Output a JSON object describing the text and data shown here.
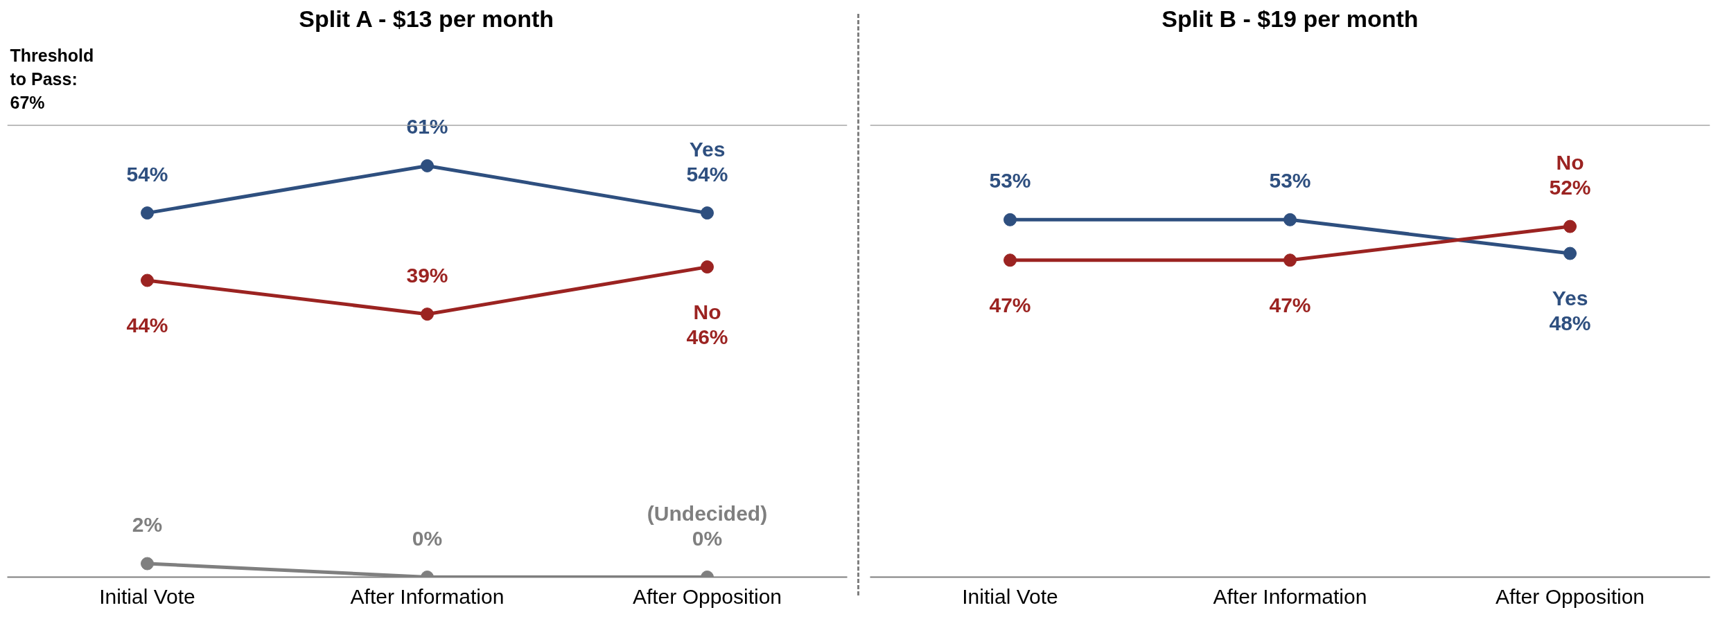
{
  "chart_data": [
    {
      "type": "line",
      "title": "Split A - $13 per month",
      "categories": [
        "Initial Vote",
        "After Information",
        "After Opposition"
      ],
      "data_labels": true,
      "marker": "circle",
      "line_style": "solid",
      "grid": false,
      "legend": false,
      "series": [
        {
          "name": "Yes",
          "color": "#2e4f7f",
          "values": [
            54,
            61,
            54
          ],
          "value_labels": [
            "54%",
            "61%",
            "54%"
          ]
        },
        {
          "name": "No",
          "color": "#9b2321",
          "values": [
            44,
            39,
            46
          ],
          "value_labels": [
            "44%",
            "39%",
            "46%"
          ]
        },
        {
          "name": "(Undecided)",
          "color": "#7f7f7f",
          "values": [
            2,
            0,
            0
          ],
          "value_labels": [
            "2%",
            "0%",
            "0%"
          ]
        }
      ],
      "ref_lines": [
        {
          "axis": "y",
          "value": 67,
          "label": "Threshold to Pass: 67%",
          "color": "#a6a6a6"
        }
      ]
    },
    {
      "type": "line",
      "title": "Split B - $19 per month",
      "categories": [
        "Initial Vote",
        "After Information",
        "After Opposition"
      ],
      "data_labels": true,
      "marker": "circle",
      "line_style": "solid",
      "grid": false,
      "legend": false,
      "series": [
        {
          "name": "Yes",
          "color": "#2e4f7f",
          "values": [
            53,
            53,
            48
          ],
          "value_labels": [
            "53%",
            "53%",
            "48%"
          ]
        },
        {
          "name": "No",
          "color": "#9b2321",
          "values": [
            47,
            47,
            52
          ],
          "value_labels": [
            "47%",
            "47%",
            "52%"
          ]
        }
      ],
      "ref_lines": [
        {
          "axis": "y",
          "value": 67,
          "label": null,
          "color": "#a6a6a6"
        }
      ]
    }
  ]
}
